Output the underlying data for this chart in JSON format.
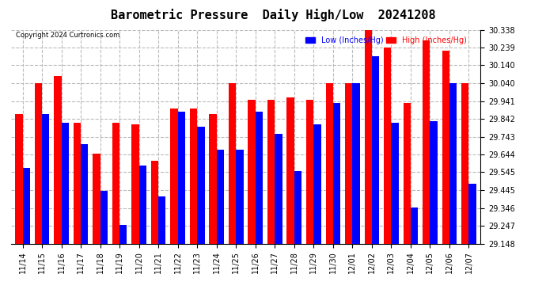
{
  "title": "Barometric Pressure  Daily High/Low  20241208",
  "copyright": "Copyright 2024 Curtronics.com",
  "legend_low": "Low (Inches/Hg)",
  "legend_high": "High (Inches/Hg)",
  "low_color": "blue",
  "high_color": "red",
  "dates": [
    "11/14",
    "11/15",
    "11/16",
    "11/17",
    "11/18",
    "11/19",
    "11/20",
    "11/21",
    "11/22",
    "11/23",
    "11/24",
    "11/25",
    "11/26",
    "11/27",
    "11/28",
    "11/29",
    "11/30",
    "12/01",
    "12/02",
    "12/03",
    "12/04",
    "12/05",
    "12/06",
    "12/07"
  ],
  "highs": [
    29.87,
    30.04,
    30.08,
    29.82,
    29.65,
    29.82,
    29.81,
    29.61,
    29.9,
    29.9,
    29.87,
    30.04,
    29.95,
    29.95,
    29.96,
    29.95,
    30.04,
    30.04,
    30.34,
    30.24,
    29.93,
    30.28,
    30.22,
    30.04
  ],
  "lows": [
    29.57,
    29.87,
    29.82,
    29.7,
    29.44,
    29.25,
    29.58,
    29.41,
    29.88,
    29.8,
    29.67,
    29.67,
    29.88,
    29.76,
    29.55,
    29.81,
    29.93,
    30.04,
    30.19,
    29.82,
    29.35,
    29.83,
    30.04,
    29.48
  ],
  "ymin": 29.148,
  "ymax": 30.338,
  "yticks": [
    29.148,
    29.247,
    29.346,
    29.445,
    29.545,
    29.644,
    29.743,
    29.842,
    29.941,
    30.04,
    30.14,
    30.239,
    30.338
  ],
  "background_color": "#ffffff",
  "grid_color": "#bbbbbb",
  "title_fontsize": 11,
  "tick_fontsize": 7,
  "bar_width": 0.38
}
